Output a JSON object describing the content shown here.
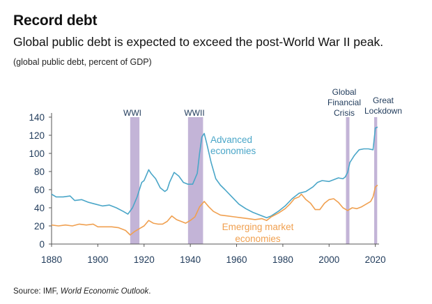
{
  "title": "Record debt",
  "subtitle": "Global public debt is expected to exceed the post-World War II peak.",
  "units_note": "(global public debt, percent of GDP)",
  "source": {
    "prefix": "Source: IMF, ",
    "publication": "World Economic Outlook",
    "suffix": "."
  },
  "chart_data": {
    "type": "line",
    "xlim": [
      1880,
      2021
    ],
    "ylim": [
      0,
      140
    ],
    "x_ticks": [
      1880,
      1900,
      1920,
      1940,
      1960,
      1980,
      2000,
      2020
    ],
    "y_ticks": [
      0,
      20,
      40,
      60,
      80,
      100,
      120,
      140
    ],
    "grid": false,
    "legend": "inline labels next to lines",
    "shaded_periods": [
      {
        "label": "WWI",
        "start": 1914,
        "end": 1918,
        "color": "#b9a7d0"
      },
      {
        "label": "WWII",
        "start": 1939,
        "end": 1945.5,
        "color": "#b9a7d0"
      },
      {
        "label": "Global Financial Crisis",
        "label_lines": [
          "Global",
          "Financial",
          "Crisis"
        ],
        "start": 2007.3,
        "end": 2008.8,
        "color": "#b9a7d0"
      },
      {
        "label": "Great Lockdown",
        "label_lines": [
          "Great",
          "Lockdown"
        ],
        "start": 2019.5,
        "end": 2020.8,
        "color": "#b9a7d0"
      }
    ],
    "series": [
      {
        "name": "Advanced economies",
        "label_lines": [
          "Advanced",
          "economies"
        ],
        "color": "#4aa6c8",
        "points": [
          [
            1880,
            55
          ],
          [
            1882,
            52
          ],
          [
            1885,
            52
          ],
          [
            1888,
            53
          ],
          [
            1890,
            48
          ],
          [
            1893,
            49
          ],
          [
            1896,
            46
          ],
          [
            1899,
            44
          ],
          [
            1902,
            42
          ],
          [
            1905,
            43
          ],
          [
            1908,
            40
          ],
          [
            1911,
            36
          ],
          [
            1913,
            33
          ],
          [
            1915,
            40
          ],
          [
            1917,
            52
          ],
          [
            1919,
            68
          ],
          [
            1920,
            70
          ],
          [
            1922,
            82
          ],
          [
            1923,
            78
          ],
          [
            1925,
            72
          ],
          [
            1927,
            62
          ],
          [
            1929,
            58
          ],
          [
            1930,
            60
          ],
          [
            1931,
            68
          ],
          [
            1933,
            79
          ],
          [
            1935,
            75
          ],
          [
            1937,
            68
          ],
          [
            1939,
            66
          ],
          [
            1941,
            66
          ],
          [
            1943,
            78
          ],
          [
            1944,
            100
          ],
          [
            1945,
            118
          ],
          [
            1946,
            122
          ],
          [
            1947,
            112
          ],
          [
            1949,
            90
          ],
          [
            1951,
            72
          ],
          [
            1953,
            65
          ],
          [
            1955,
            60
          ],
          [
            1958,
            52
          ],
          [
            1961,
            44
          ],
          [
            1964,
            39
          ],
          [
            1967,
            35
          ],
          [
            1970,
            32
          ],
          [
            1973,
            29
          ],
          [
            1975,
            31
          ],
          [
            1978,
            36
          ],
          [
            1981,
            42
          ],
          [
            1984,
            50
          ],
          [
            1987,
            56
          ],
          [
            1990,
            58
          ],
          [
            1993,
            63
          ],
          [
            1995,
            68
          ],
          [
            1997,
            70
          ],
          [
            2000,
            69
          ],
          [
            2002,
            71
          ],
          [
            2004,
            73
          ],
          [
            2006,
            72
          ],
          [
            2007,
            74
          ],
          [
            2008,
            79
          ],
          [
            2009,
            90
          ],
          [
            2011,
            98
          ],
          [
            2013,
            104
          ],
          [
            2015,
            105
          ],
          [
            2017,
            105
          ],
          [
            2019,
            104
          ],
          [
            2020,
            128
          ],
          [
            2021,
            129
          ]
        ]
      },
      {
        "name": "Emerging market economies",
        "label_lines": [
          "Emerging market",
          "economies"
        ],
        "color": "#f0a050",
        "points": [
          [
            1880,
            21
          ],
          [
            1883,
            20
          ],
          [
            1886,
            21
          ],
          [
            1889,
            20
          ],
          [
            1892,
            22
          ],
          [
            1895,
            21
          ],
          [
            1898,
            22
          ],
          [
            1900,
            19
          ],
          [
            1903,
            19
          ],
          [
            1906,
            19
          ],
          [
            1909,
            18
          ],
          [
            1912,
            15
          ],
          [
            1914,
            10
          ],
          [
            1916,
            14
          ],
          [
            1918,
            17
          ],
          [
            1920,
            20
          ],
          [
            1922,
            26
          ],
          [
            1924,
            23
          ],
          [
            1926,
            22
          ],
          [
            1928,
            22
          ],
          [
            1930,
            25
          ],
          [
            1932,
            31
          ],
          [
            1934,
            27
          ],
          [
            1936,
            25
          ],
          [
            1938,
            23
          ],
          [
            1940,
            26
          ],
          [
            1942,
            30
          ],
          [
            1944,
            41
          ],
          [
            1946,
            47
          ],
          [
            1948,
            41
          ],
          [
            1950,
            36
          ],
          [
            1953,
            32
          ],
          [
            1956,
            31
          ],
          [
            1959,
            30
          ],
          [
            1962,
            29
          ],
          [
            1965,
            28
          ],
          [
            1968,
            27
          ],
          [
            1971,
            28
          ],
          [
            1973,
            26
          ],
          [
            1975,
            30
          ],
          [
            1978,
            34
          ],
          [
            1981,
            39
          ],
          [
            1983,
            44
          ],
          [
            1985,
            50
          ],
          [
            1987,
            52
          ],
          [
            1988,
            55
          ],
          [
            1990,
            49
          ],
          [
            1992,
            45
          ],
          [
            1994,
            38
          ],
          [
            1996,
            38
          ],
          [
            1998,
            45
          ],
          [
            2000,
            49
          ],
          [
            2002,
            50
          ],
          [
            2004,
            46
          ],
          [
            2006,
            40
          ],
          [
            2008,
            37
          ],
          [
            2010,
            40
          ],
          [
            2012,
            39
          ],
          [
            2014,
            41
          ],
          [
            2016,
            44
          ],
          [
            2018,
            47
          ],
          [
            2019,
            52
          ],
          [
            2020,
            63
          ],
          [
            2021,
            65
          ]
        ]
      }
    ]
  }
}
